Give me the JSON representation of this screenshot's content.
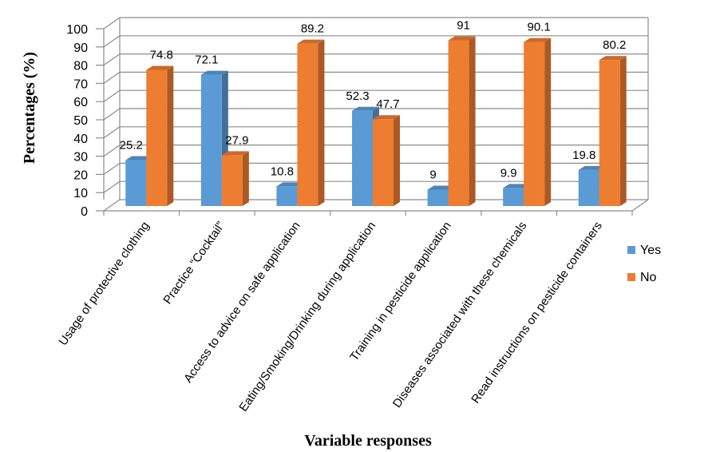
{
  "chart_data": {
    "type": "bar",
    "title": "",
    "xlabel": "Variable responses",
    "ylabel": "Percentages (%)",
    "ylim": [
      0,
      100
    ],
    "yticks": [
      0,
      10,
      20,
      30,
      40,
      50,
      60,
      70,
      80,
      90,
      100
    ],
    "grid": true,
    "legend_position": "right",
    "categories": [
      "Usage of protective clothing",
      "Practice “Cocktail”",
      "Access to advice on safe application",
      "Eating/Smoking/Drinking during application",
      "Training in pesticide application",
      "Diseases associated with these chemicals",
      "Read instructions on pesticide containers"
    ],
    "series": [
      {
        "name": "Yes",
        "color": "#5b9bd5",
        "values": [
          25.2,
          72.1,
          10.8,
          52.3,
          9,
          9.9,
          19.8
        ],
        "labels": [
          "25.2",
          "72.1",
          "10.8",
          "52.3",
          "9",
          "9.9",
          "19.8"
        ]
      },
      {
        "name": "No",
        "color": "#ed7d31",
        "values": [
          74.8,
          27.9,
          89.2,
          47.7,
          91,
          90.1,
          80.2
        ],
        "labels": [
          "74.8",
          "27.9",
          "89.2",
          "47.7",
          "91",
          "90.1",
          "80.2"
        ]
      }
    ]
  }
}
